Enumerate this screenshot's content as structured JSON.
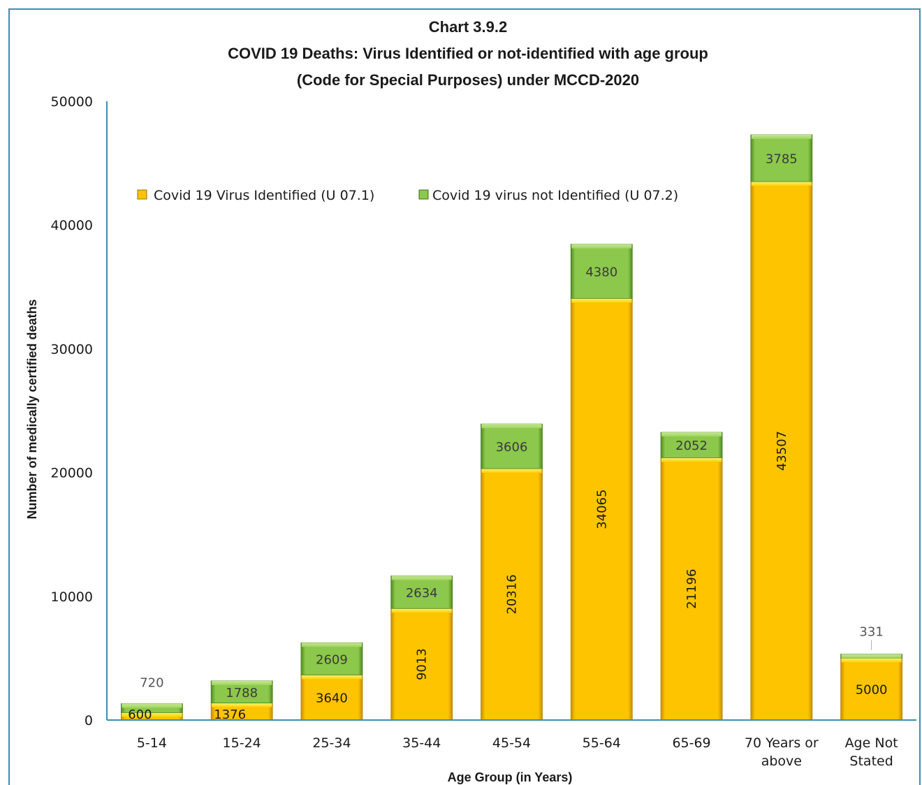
{
  "chart_data": {
    "type": "bar",
    "stacked": true,
    "title_lines": [
      "Chart 3.9.2",
      "COVID 19 Deaths: Virus Identified or not-identified with age group",
      "(Code for Special Purposes) under MCCD-2020"
    ],
    "xlabel": "Age Group (in Years)",
    "ylabel": "Number of medically certified deaths",
    "ylim": [
      0,
      50000
    ],
    "yticks": [
      "0",
      "10000",
      "20000",
      "30000",
      "40000",
      "50000"
    ],
    "categories": [
      [
        "5-14"
      ],
      [
        "15-24"
      ],
      [
        "25-34"
      ],
      [
        "35-44"
      ],
      [
        "45-54"
      ],
      [
        "55-64"
      ],
      [
        "65-69"
      ],
      [
        "70  Years or",
        "above"
      ],
      [
        "Age Not",
        "Stated"
      ]
    ],
    "series": [
      {
        "name": "Covid 19 Virus Identified (U 07.1)",
        "color": "#ffc400",
        "values": [
          600,
          1376,
          3640,
          9013,
          20316,
          34065,
          21196,
          43507,
          5000
        ]
      },
      {
        "name": "Covid 19 virus not Identified (U 07.2)",
        "color": "#7dba3a",
        "values": [
          720,
          1788,
          2609,
          2634,
          3606,
          4380,
          2052,
          3785,
          331
        ]
      }
    ],
    "legend_position": "top-left",
    "grid": false
  },
  "colors": {
    "frame": "#3c8fb0",
    "axis": "#3c8fb0",
    "identified": "#ffc400",
    "not_identified": "#7dba3a"
  }
}
